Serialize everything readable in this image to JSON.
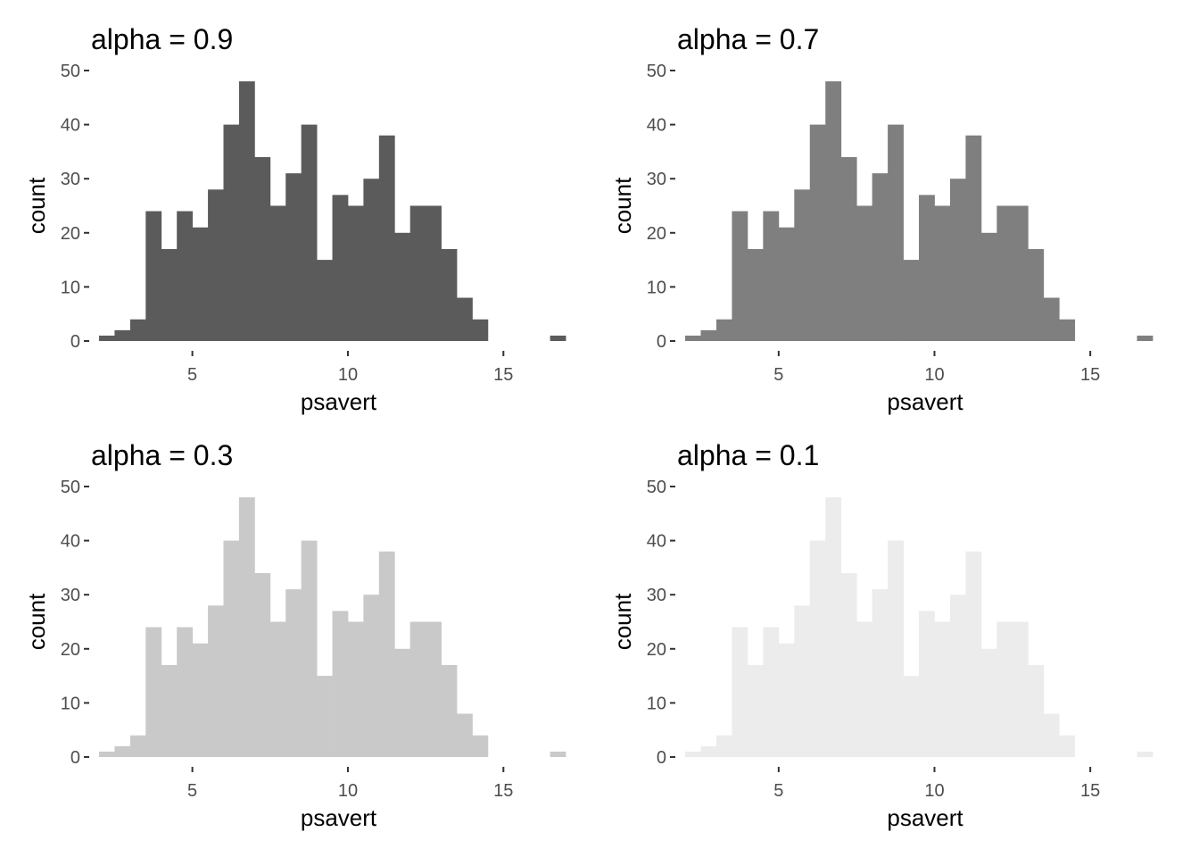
{
  "chart_data": [
    {
      "type": "bar",
      "title": "alpha = 0.9",
      "xlabel": "psavert",
      "ylabel": "count",
      "alpha": 0.9,
      "fill": "#5b5b5b",
      "xlim": [
        1.77,
        17.63
      ],
      "ylim": [
        0,
        50
      ],
      "xticks": [
        5,
        10,
        15
      ],
      "yticks": [
        0,
        10,
        20,
        30,
        40,
        50
      ],
      "grid": false,
      "bin_start": 2.0,
      "bin_width": 0.5,
      "values": [
        1,
        2,
        4,
        24,
        17,
        24,
        21,
        28,
        40,
        48,
        34,
        25,
        31,
        40,
        15,
        27,
        25,
        30,
        38,
        20,
        25,
        25,
        17,
        8,
        4,
        0,
        0,
        0,
        0,
        1
      ]
    },
    {
      "type": "bar",
      "title": "alpha = 0.7",
      "xlabel": "psavert",
      "ylabel": "count",
      "alpha": 0.7,
      "fill": "#7f7f7f",
      "xlim": [
        1.77,
        17.63
      ],
      "ylim": [
        0,
        50
      ],
      "xticks": [
        5,
        10,
        15
      ],
      "yticks": [
        0,
        10,
        20,
        30,
        40,
        50
      ],
      "grid": false,
      "bin_start": 2.0,
      "bin_width": 0.5,
      "values": [
        1,
        2,
        4,
        24,
        17,
        24,
        21,
        28,
        40,
        48,
        34,
        25,
        31,
        40,
        15,
        27,
        25,
        30,
        38,
        20,
        25,
        25,
        17,
        8,
        4,
        0,
        0,
        0,
        0,
        1
      ]
    },
    {
      "type": "bar",
      "title": "alpha = 0.3",
      "xlabel": "psavert",
      "ylabel": "count",
      "alpha": 0.3,
      "fill": "#c9c9c9",
      "xlim": [
        1.77,
        17.63
      ],
      "ylim": [
        0,
        50
      ],
      "xticks": [
        5,
        10,
        15
      ],
      "yticks": [
        0,
        10,
        20,
        30,
        40,
        50
      ],
      "grid": false,
      "bin_start": 2.0,
      "bin_width": 0.5,
      "values": [
        1,
        2,
        4,
        24,
        17,
        24,
        21,
        28,
        40,
        48,
        34,
        25,
        31,
        40,
        15,
        27,
        25,
        30,
        38,
        20,
        25,
        25,
        17,
        8,
        4,
        0,
        0,
        0,
        0,
        1
      ]
    },
    {
      "type": "bar",
      "title": "alpha = 0.1",
      "xlabel": "psavert",
      "ylabel": "count",
      "alpha": 0.1,
      "fill": "#ececec",
      "xlim": [
        1.77,
        17.63
      ],
      "ylim": [
        0,
        50
      ],
      "xticks": [
        5,
        10,
        15
      ],
      "yticks": [
        0,
        10,
        20,
        30,
        40,
        50
      ],
      "grid": false,
      "bin_start": 2.0,
      "bin_width": 0.5,
      "values": [
        1,
        2,
        4,
        24,
        17,
        24,
        21,
        28,
        40,
        48,
        34,
        25,
        31,
        40,
        15,
        27,
        25,
        30,
        38,
        20,
        25,
        25,
        17,
        8,
        4,
        0,
        0,
        0,
        0,
        1
      ]
    }
  ]
}
